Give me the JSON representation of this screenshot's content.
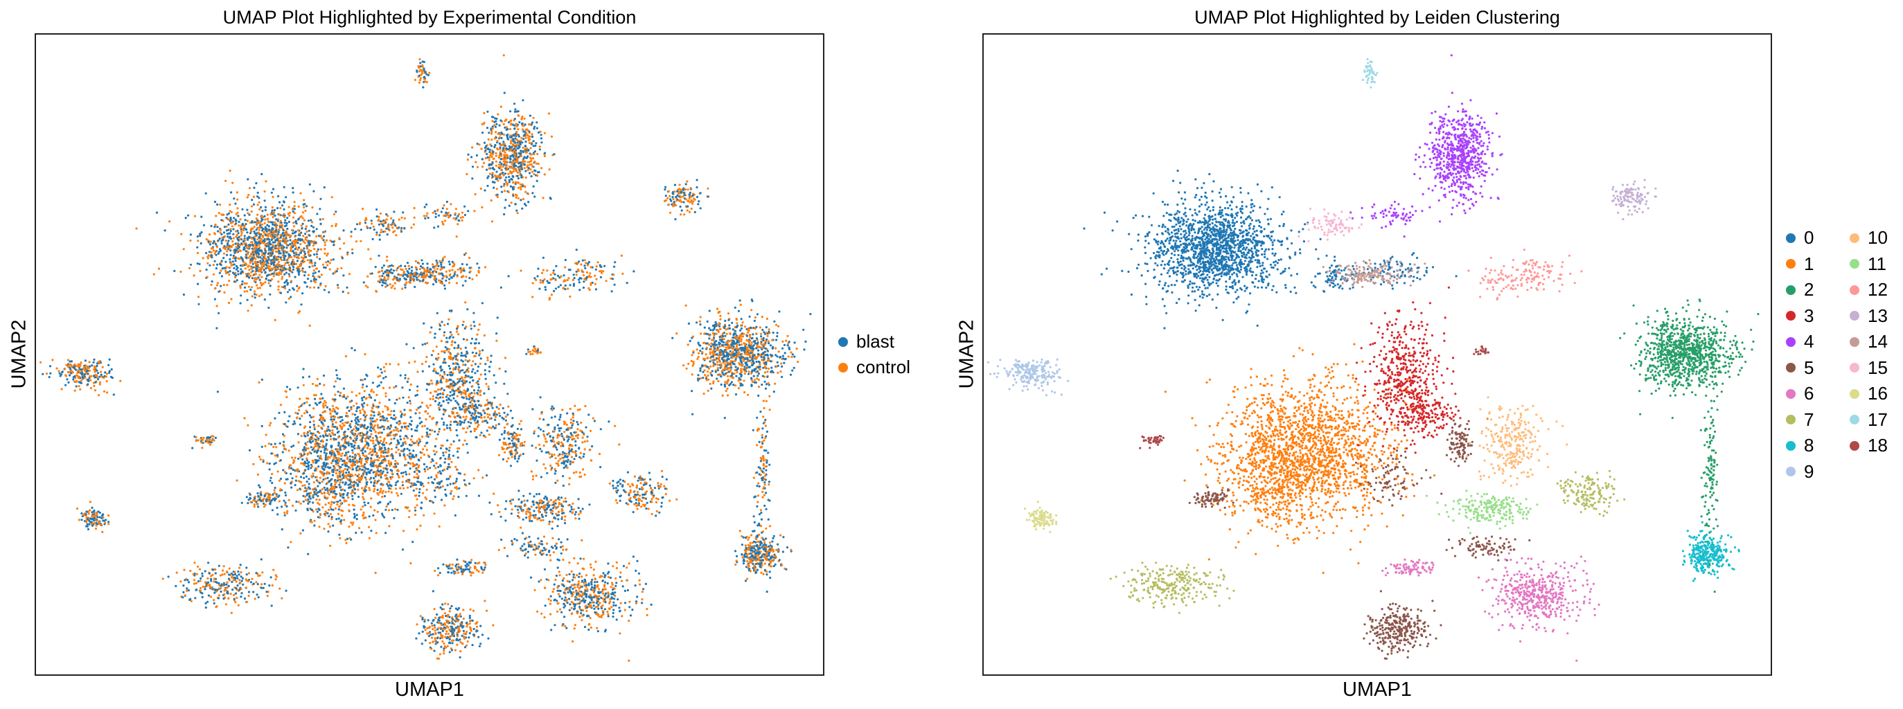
{
  "chart_data": [
    {
      "type": "scatter",
      "title": "UMAP Plot Highlighted by Experimental Condition",
      "xlabel": "UMAP1",
      "ylabel": "UMAP2",
      "legend_placement": "right",
      "legend": [
        {
          "label": "blast",
          "color": "#1f77b4"
        },
        {
          "label": "control",
          "color": "#ff7f0e"
        }
      ]
    },
    {
      "type": "scatter",
      "title": "UMAP Plot Highlighted by Leiden Clustering",
      "xlabel": "UMAP1",
      "ylabel": "UMAP2",
      "legend_placement": "right",
      "legend": [
        {
          "label": "0",
          "color": "#1f77b4"
        },
        {
          "label": "1",
          "color": "#ff7f0e"
        },
        {
          "label": "2",
          "color": "#279e68"
        },
        {
          "label": "3",
          "color": "#d62728"
        },
        {
          "label": "4",
          "color": "#aa40fc"
        },
        {
          "label": "5",
          "color": "#8c564b"
        },
        {
          "label": "6",
          "color": "#e377c2"
        },
        {
          "label": "7",
          "color": "#b5bd61"
        },
        {
          "label": "8",
          "color": "#17becf"
        },
        {
          "label": "9",
          "color": "#aec7e8"
        },
        {
          "label": "10",
          "color": "#ffbb78"
        },
        {
          "label": "11",
          "color": "#98df8a"
        },
        {
          "label": "12",
          "color": "#ff9896"
        },
        {
          "label": "13",
          "color": "#c5b0d5"
        },
        {
          "label": "14",
          "color": "#c49c94"
        },
        {
          "label": "15",
          "color": "#f7b6d2"
        },
        {
          "label": "16",
          "color": "#dbdb8d"
        },
        {
          "label": "17",
          "color": "#9edae5"
        },
        {
          "label": "18",
          "color": "#ad494a"
        }
      ]
    }
  ]
}
